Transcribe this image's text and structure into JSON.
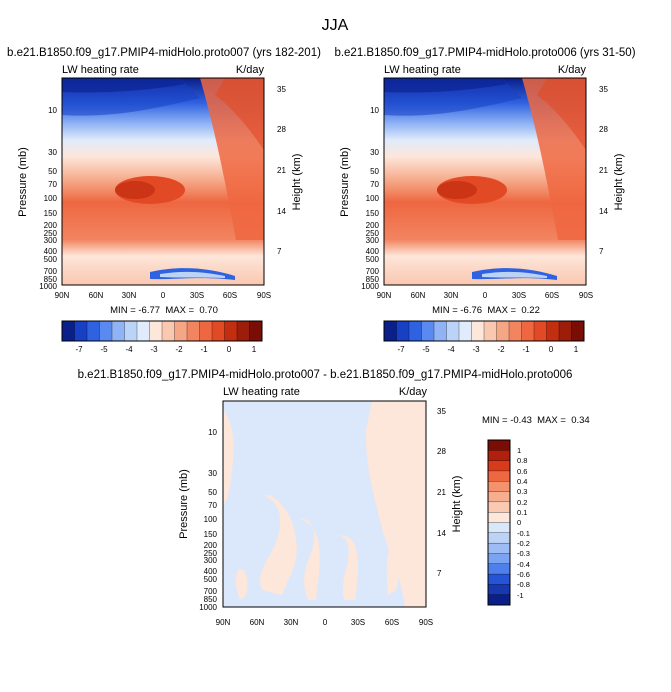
{
  "page_title": "JJA",
  "chart_data": [
    {
      "type": "heatmap",
      "title": "b.e21.B1850.f09_g17.PMIP4-midHolo.proto007 (yrs 182-201)",
      "variable_label": "LW heating rate",
      "units_label": "K/day",
      "xlabel": "",
      "ylabel": "Pressure (mb)",
      "ylabel_right": "Height (km)",
      "x_ticks": [
        "90N",
        "60N",
        "30N",
        "0",
        "30S",
        "60S",
        "90S"
      ],
      "y_ticks": [
        "10",
        "30",
        "50",
        "70",
        "100",
        "150",
        "200",
        "250",
        "300",
        "400",
        "500",
        "700",
        "850",
        "1000"
      ],
      "y_ticks_right": [
        "35",
        "28",
        "21",
        "14",
        "7"
      ],
      "stats": "MIN = -6.77  MAX =  0.70",
      "min": -6.77,
      "max": 0.7
    },
    {
      "type": "heatmap",
      "title": "b.e21.B1850.f09_g17.PMIP4-midHolo.proto006 (yrs 31-50)",
      "variable_label": "LW heating rate",
      "units_label": "K/day",
      "xlabel": "",
      "ylabel": "Pressure (mb)",
      "ylabel_right": "Height (km)",
      "x_ticks": [
        "90N",
        "60N",
        "30N",
        "0",
        "30S",
        "60S",
        "90S"
      ],
      "y_ticks": [
        "10",
        "30",
        "50",
        "70",
        "100",
        "150",
        "200",
        "250",
        "300",
        "400",
        "500",
        "700",
        "850",
        "1000"
      ],
      "y_ticks_right": [
        "35",
        "28",
        "21",
        "14",
        "7"
      ],
      "stats": "MIN = -6.76  MAX =  0.22",
      "min": -6.76,
      "max": 0.22
    },
    {
      "type": "heatmap",
      "title": "b.e21.B1850.f09_g17.PMIP4-midHolo.proto007 - b.e21.B1850.f09_g17.PMIP4-midHolo.proto006",
      "variable_label": "LW heating rate",
      "units_label": "K/day",
      "xlabel": "",
      "ylabel": "Pressure (mb)",
      "ylabel_right": "Height (km)",
      "x_ticks": [
        "90N",
        "60N",
        "30N",
        "0",
        "30S",
        "60S",
        "90S"
      ],
      "y_ticks": [
        "10",
        "30",
        "50",
        "70",
        "100",
        "150",
        "200",
        "250",
        "300",
        "400",
        "500",
        "700",
        "850",
        "1000"
      ],
      "y_ticks_right": [
        "35",
        "28",
        "21",
        "14",
        "7"
      ],
      "stats": "MIN = -0.43  MAX =  0.34",
      "min": -0.43,
      "max": 0.34
    }
  ],
  "colorbar_top": {
    "labels": [
      "-7",
      "-5",
      "-4",
      "-3",
      "-2",
      "-1",
      "0",
      "1"
    ],
    "colors": [
      "#0a1f8a",
      "#1840c4",
      "#2f62e0",
      "#5a8aef",
      "#8fb3f5",
      "#bcd3f8",
      "#e0ebfb",
      "#fde6da",
      "#f9c8b0",
      "#f5a685",
      "#f28460",
      "#ee6741",
      "#e14a25",
      "#c32d10",
      "#9b1d0a",
      "#7a0d06"
    ]
  },
  "colorbar_diff": {
    "labels": [
      "1",
      "0.8",
      "0.6",
      "0.4",
      "0.3",
      "0.2",
      "0.1",
      "0",
      "-0.1",
      "-0.2",
      "-0.3",
      "-0.4",
      "-0.6",
      "-0.8",
      "-1"
    ],
    "colors": [
      "#7a0d06",
      "#b1200c",
      "#d73b1a",
      "#ee6741",
      "#f4926e",
      "#f7ae8f",
      "#fac9b2",
      "#fde6da",
      "#d9e7fb",
      "#bcd3f8",
      "#9dbcf5",
      "#7aa3f1",
      "#4d80ea",
      "#2555d6",
      "#1838b0",
      "#0a1f8a"
    ]
  }
}
